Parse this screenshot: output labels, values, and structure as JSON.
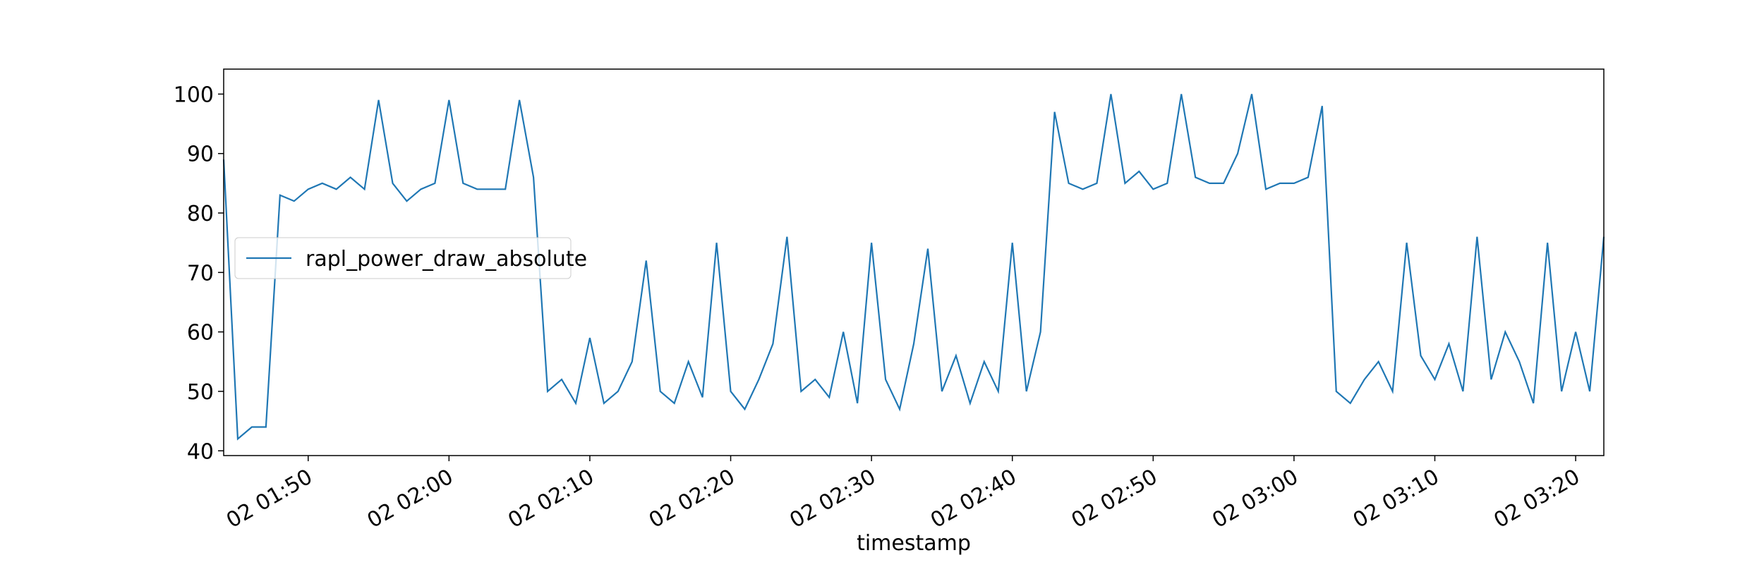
{
  "chart_data": {
    "type": "line",
    "x_label": "timestamp",
    "x": [
      "02 01:44",
      "02 01:45",
      "02 01:46",
      "02 01:47",
      "02 01:48",
      "02 01:49",
      "02 01:50",
      "02 01:51",
      "02 01:52",
      "02 01:53",
      "02 01:54",
      "02 01:55",
      "02 01:56",
      "02 01:57",
      "02 01:58",
      "02 01:59",
      "02 02:00",
      "02 02:01",
      "02 02:02",
      "02 02:03",
      "02 02:04",
      "02 02:05",
      "02 02:06",
      "02 02:07",
      "02 02:08",
      "02 02:09",
      "02 02:10",
      "02 02:11",
      "02 02:12",
      "02 02:13",
      "02 02:14",
      "02 02:15",
      "02 02:16",
      "02 02:17",
      "02 02:18",
      "02 02:19",
      "02 02:20",
      "02 02:21",
      "02 02:22",
      "02 02:23",
      "02 02:24",
      "02 02:25",
      "02 02:26",
      "02 02:27",
      "02 02:28",
      "02 02:29",
      "02 02:30",
      "02 02:31",
      "02 02:32",
      "02 02:33",
      "02 02:34",
      "02 02:35",
      "02 02:36",
      "02 02:37",
      "02 02:38",
      "02 02:39",
      "02 02:40",
      "02 02:41",
      "02 02:42",
      "02 02:43",
      "02 02:44",
      "02 02:45",
      "02 02:46",
      "02 02:47",
      "02 02:48",
      "02 02:49",
      "02 02:50",
      "02 02:51",
      "02 02:52",
      "02 02:53",
      "02 02:54",
      "02 02:55",
      "02 02:56",
      "02 02:57",
      "02 02:58",
      "02 02:59",
      "02 03:00",
      "02 03:01",
      "02 03:02",
      "02 03:03",
      "02 03:04",
      "02 03:05",
      "02 03:06",
      "02 03:07",
      "02 03:08",
      "02 03:09",
      "02 03:10",
      "02 03:11",
      "02 03:12",
      "02 03:13",
      "02 03:14",
      "02 03:15",
      "02 03:16",
      "02 03:17",
      "02 03:18",
      "02 03:19",
      "02 03:20",
      "02 03:21",
      "02 03:22"
    ],
    "series": [
      {
        "name": "rapl_power_draw_absolute",
        "color": "#1f77b4",
        "values": [
          89,
          42,
          44,
          44,
          83,
          82,
          84,
          85,
          84,
          86,
          84,
          99,
          85,
          82,
          84,
          85,
          99,
          85,
          84,
          84,
          84,
          99,
          86,
          50,
          52,
          48,
          59,
          48,
          50,
          55,
          72,
          50,
          48,
          55,
          49,
          75,
          50,
          47,
          52,
          58,
          76,
          50,
          52,
          49,
          60,
          48,
          75,
          52,
          47,
          58,
          74,
          50,
          56,
          48,
          55,
          50,
          75,
          50,
          60,
          97,
          85,
          84,
          85,
          100,
          85,
          87,
          84,
          85,
          100,
          86,
          85,
          85,
          90,
          100,
          84,
          85,
          85,
          86,
          98,
          50,
          48,
          52,
          55,
          50,
          75,
          56,
          52,
          58,
          50,
          76,
          52,
          60,
          55,
          48,
          75,
          50,
          60,
          50,
          76
        ]
      }
    ],
    "xlim": [
      "02 01:44",
      "02 03:22"
    ],
    "xticks": [
      "02 01:50",
      "02 02:00",
      "02 02:10",
      "02 02:20",
      "02 02:30",
      "02 02:40",
      "02 02:50",
      "02 03:00",
      "02 03:10",
      "02 03:20"
    ],
    "ylim": [
      39.2,
      104.2
    ],
    "yticks": [
      40,
      50,
      60,
      70,
      80,
      90,
      100
    ],
    "legend": "center left"
  }
}
